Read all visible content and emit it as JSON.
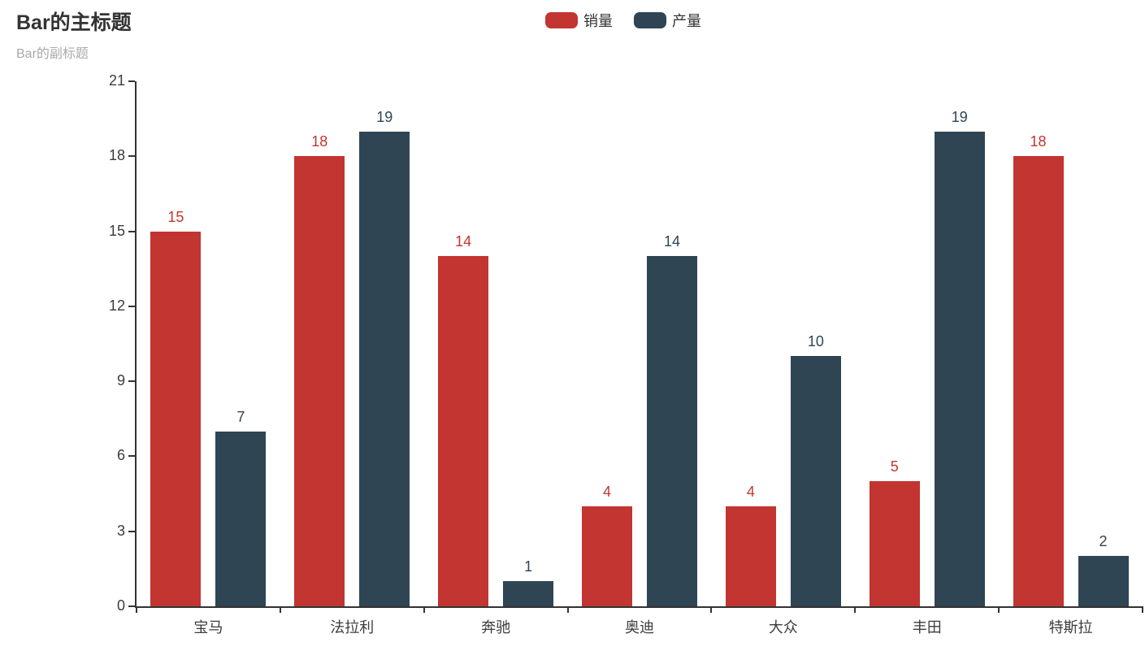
{
  "chart_data": {
    "type": "bar",
    "title": "Bar的主标题",
    "subtitle": "Bar的副标题",
    "categories": [
      "宝马",
      "法拉利",
      "奔驰",
      "奥迪",
      "大众",
      "丰田",
      "特斯拉"
    ],
    "series": [
      {
        "name": "销量",
        "color": "#c23531",
        "values": [
          15,
          18,
          14,
          4,
          4,
          5,
          18
        ]
      },
      {
        "name": "产量",
        "color": "#2f4554",
        "values": [
          7,
          19,
          1,
          14,
          10,
          19,
          2
        ]
      }
    ],
    "xlabel": "",
    "ylabel": "",
    "ylim": [
      0,
      21
    ],
    "y_ticks": [
      0,
      3,
      6,
      9,
      12,
      15,
      18,
      21
    ],
    "grid": false,
    "legend_position": "top-center",
    "value_labels": true,
    "value_label_color_follows_series": true
  },
  "colors": {
    "background": "#ffffff",
    "axis": "#333333",
    "axis_label": "#3c3c3c",
    "title": "#333333",
    "subtitle": "#aaaaaa",
    "series_sales": "#c23531",
    "series_production": "#2f4554"
  }
}
